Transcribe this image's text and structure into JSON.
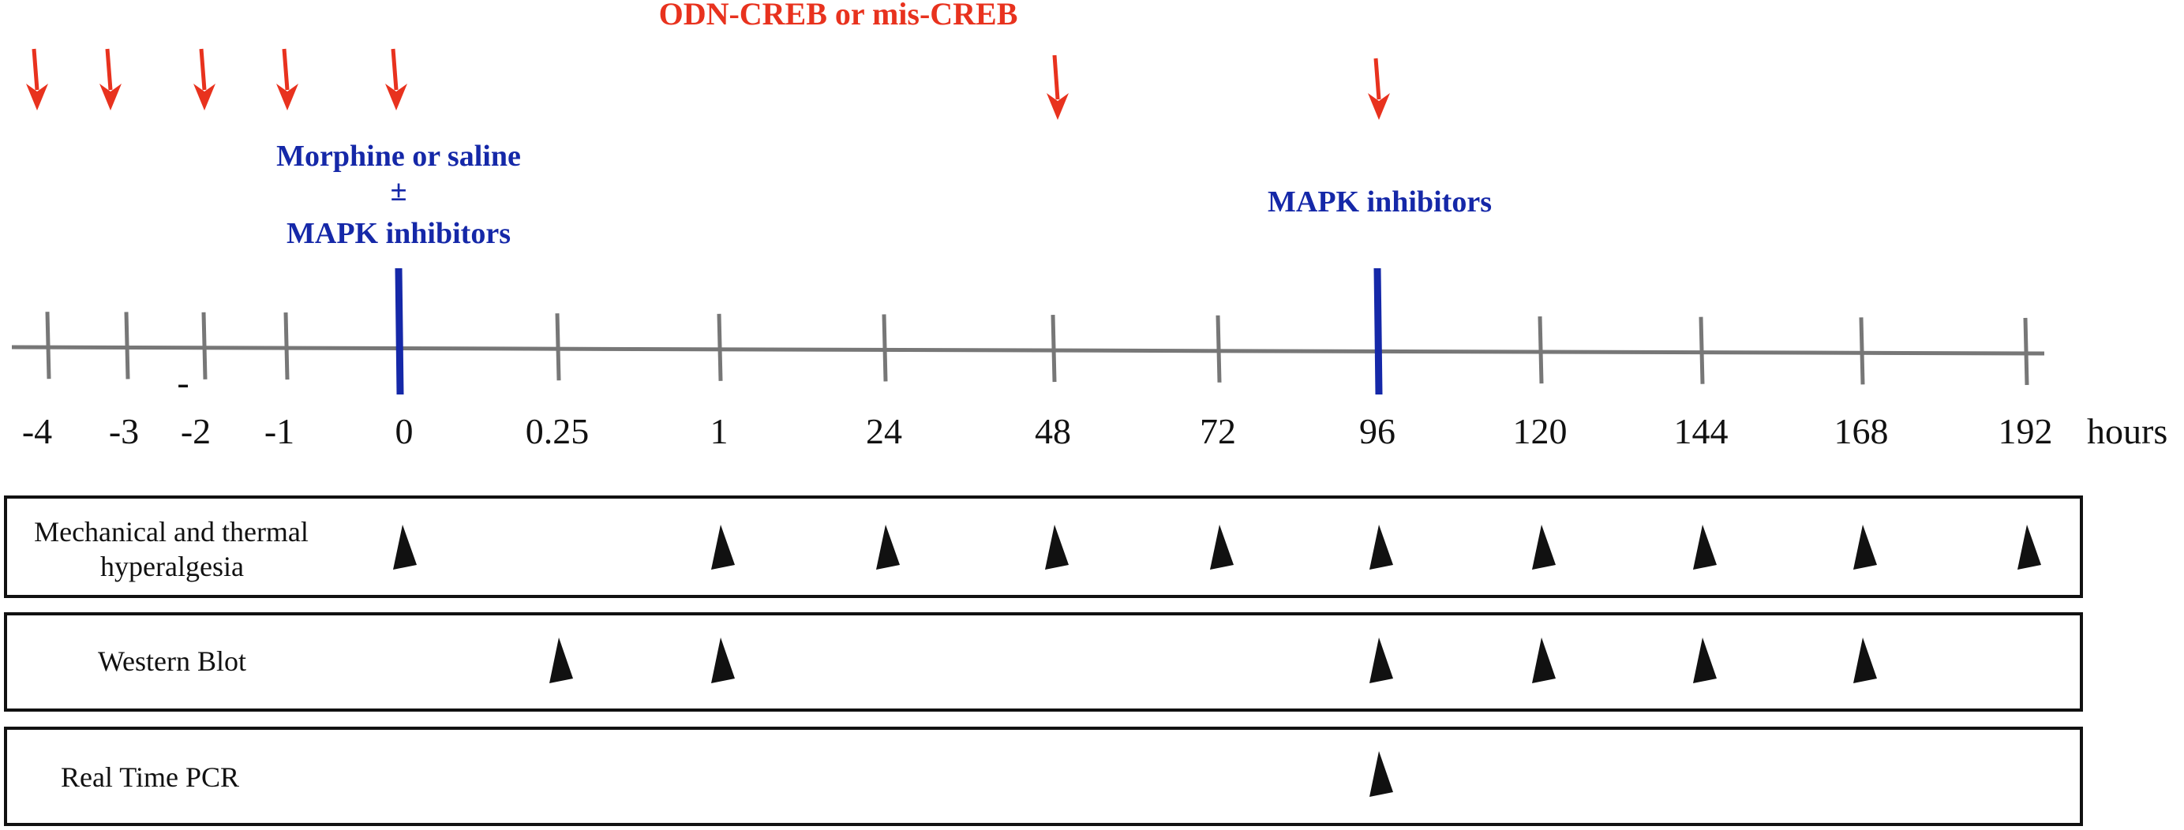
{
  "labels": {
    "treatment_top": "ODN-CREB or mis-CREB",
    "morphine_line1": "Morphine or saline",
    "morphine_line2": "±",
    "morphine_line3": "MAPK inhibitors",
    "mapk_96": "MAPK inhibitors",
    "minus_mark": "-",
    "hours": "hours"
  },
  "colors": {
    "red": "#e8321e",
    "blue": "#1528a8",
    "gray": "#777777",
    "black": "#111111"
  },
  "timeline": {
    "ticks": [
      "-4",
      "-3",
      "-2",
      "-1",
      "0",
      "0.25",
      "1",
      "24",
      "48",
      "72",
      "96",
      "120",
      "144",
      "168",
      "192"
    ],
    "blue_markers": [
      "0",
      "96"
    ],
    "red_arrows": [
      "-4",
      "-3",
      "-2",
      "-1",
      "0",
      "48",
      "96"
    ]
  },
  "rows": [
    {
      "label_lines": [
        "Mechanical and thermal",
        "hyperalgesia"
      ],
      "markers": [
        "0",
        "1",
        "24",
        "48",
        "72",
        "96",
        "120",
        "144",
        "168",
        "192"
      ]
    },
    {
      "label_lines": [
        "Western Blot"
      ],
      "markers": [
        "0.25",
        "1",
        "96",
        "120",
        "144",
        "168"
      ]
    },
    {
      "label_lines": [
        "Real Time PCR"
      ],
      "markers": [
        "96"
      ]
    }
  ]
}
